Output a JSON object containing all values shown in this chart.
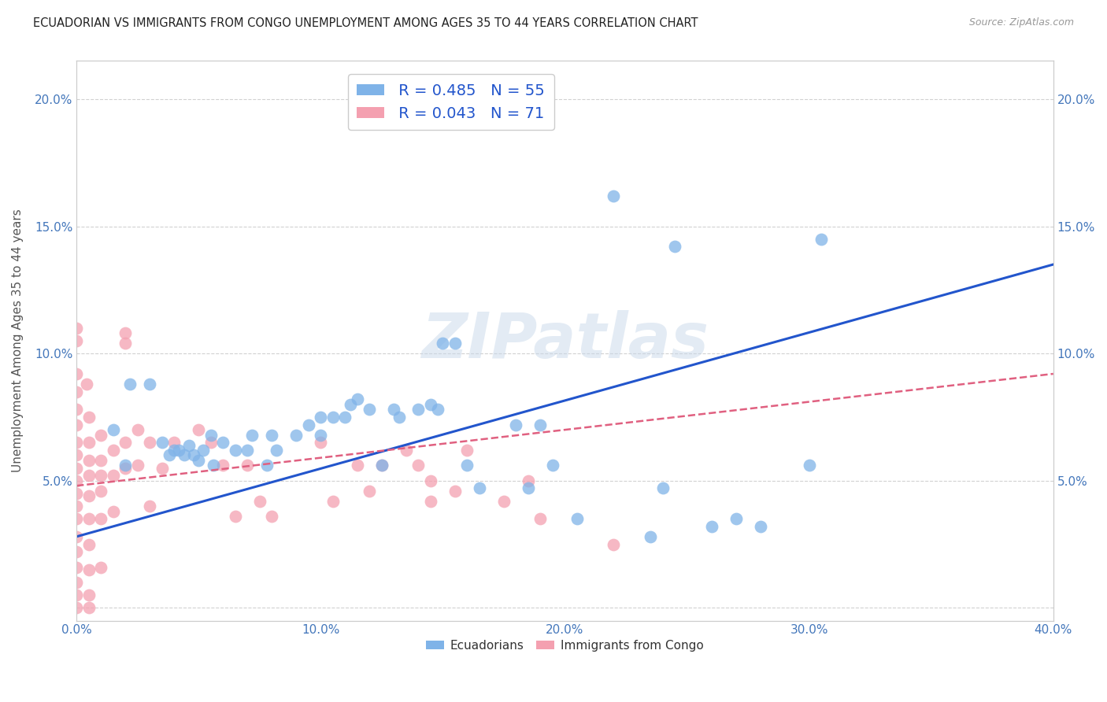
{
  "title": "ECUADORIAN VS IMMIGRANTS FROM CONGO UNEMPLOYMENT AMONG AGES 35 TO 44 YEARS CORRELATION CHART",
  "source": "Source: ZipAtlas.com",
  "ylabel": "Unemployment Among Ages 35 to 44 years",
  "xlim": [
    0.0,
    0.4
  ],
  "ylim": [
    -0.005,
    0.215
  ],
  "xticks": [
    0.0,
    0.1,
    0.2,
    0.3,
    0.4
  ],
  "yticks": [
    0.0,
    0.05,
    0.1,
    0.15,
    0.2
  ],
  "xticklabels": [
    "0.0%",
    "10.0%",
    "20.0%",
    "30.0%",
    "40.0%"
  ],
  "yticklabels": [
    "",
    "5.0%",
    "10.0%",
    "15.0%",
    "20.0%"
  ],
  "background_color": "#ffffff",
  "grid_color": "#cccccc",
  "watermark": "ZIPatlas",
  "legend_r1": "R = 0.485",
  "legend_n1": "N = 55",
  "legend_r2": "R = 0.043",
  "legend_n2": "N = 71",
  "blue_color": "#7fb3e8",
  "pink_color": "#f4a0b0",
  "blue_line_color": "#2255cc",
  "pink_line_color": "#e06080",
  "title_color": "#222222",
  "axis_label_color": "#555555",
  "tick_color": "#4477bb",
  "blue_scatter": [
    [
      0.015,
      0.07
    ],
    [
      0.02,
      0.056
    ],
    [
      0.022,
      0.088
    ],
    [
      0.03,
      0.088
    ],
    [
      0.035,
      0.065
    ],
    [
      0.038,
      0.06
    ],
    [
      0.04,
      0.062
    ],
    [
      0.042,
      0.062
    ],
    [
      0.044,
      0.06
    ],
    [
      0.046,
      0.064
    ],
    [
      0.048,
      0.06
    ],
    [
      0.05,
      0.058
    ],
    [
      0.052,
      0.062
    ],
    [
      0.055,
      0.068
    ],
    [
      0.056,
      0.056
    ],
    [
      0.06,
      0.065
    ],
    [
      0.065,
      0.062
    ],
    [
      0.07,
      0.062
    ],
    [
      0.072,
      0.068
    ],
    [
      0.078,
      0.056
    ],
    [
      0.08,
      0.068
    ],
    [
      0.082,
      0.062
    ],
    [
      0.09,
      0.068
    ],
    [
      0.095,
      0.072
    ],
    [
      0.1,
      0.075
    ],
    [
      0.1,
      0.068
    ],
    [
      0.105,
      0.075
    ],
    [
      0.11,
      0.075
    ],
    [
      0.112,
      0.08
    ],
    [
      0.115,
      0.082
    ],
    [
      0.12,
      0.078
    ],
    [
      0.125,
      0.056
    ],
    [
      0.13,
      0.078
    ],
    [
      0.132,
      0.075
    ],
    [
      0.14,
      0.078
    ],
    [
      0.145,
      0.08
    ],
    [
      0.148,
      0.078
    ],
    [
      0.15,
      0.104
    ],
    [
      0.155,
      0.104
    ],
    [
      0.16,
      0.056
    ],
    [
      0.165,
      0.047
    ],
    [
      0.18,
      0.072
    ],
    [
      0.185,
      0.047
    ],
    [
      0.19,
      0.072
    ],
    [
      0.195,
      0.056
    ],
    [
      0.205,
      0.035
    ],
    [
      0.22,
      0.162
    ],
    [
      0.235,
      0.028
    ],
    [
      0.24,
      0.047
    ],
    [
      0.245,
      0.142
    ],
    [
      0.26,
      0.032
    ],
    [
      0.27,
      0.035
    ],
    [
      0.28,
      0.032
    ],
    [
      0.3,
      0.056
    ],
    [
      0.305,
      0.145
    ]
  ],
  "pink_scatter": [
    [
      0.0,
      0.11
    ],
    [
      0.0,
      0.105
    ],
    [
      0.0,
      0.092
    ],
    [
      0.0,
      0.085
    ],
    [
      0.0,
      0.078
    ],
    [
      0.0,
      0.072
    ],
    [
      0.0,
      0.065
    ],
    [
      0.0,
      0.06
    ],
    [
      0.0,
      0.055
    ],
    [
      0.0,
      0.05
    ],
    [
      0.0,
      0.045
    ],
    [
      0.0,
      0.04
    ],
    [
      0.0,
      0.035
    ],
    [
      0.0,
      0.028
    ],
    [
      0.0,
      0.022
    ],
    [
      0.0,
      0.016
    ],
    [
      0.0,
      0.01
    ],
    [
      0.0,
      0.005
    ],
    [
      0.0,
      0.0
    ],
    [
      0.004,
      0.088
    ],
    [
      0.005,
      0.075
    ],
    [
      0.005,
      0.065
    ],
    [
      0.005,
      0.058
    ],
    [
      0.005,
      0.052
    ],
    [
      0.005,
      0.044
    ],
    [
      0.005,
      0.035
    ],
    [
      0.005,
      0.025
    ],
    [
      0.005,
      0.015
    ],
    [
      0.005,
      0.005
    ],
    [
      0.005,
      0.0
    ],
    [
      0.01,
      0.068
    ],
    [
      0.01,
      0.058
    ],
    [
      0.01,
      0.052
    ],
    [
      0.01,
      0.046
    ],
    [
      0.01,
      0.035
    ],
    [
      0.01,
      0.016
    ],
    [
      0.015,
      0.062
    ],
    [
      0.015,
      0.052
    ],
    [
      0.015,
      0.038
    ],
    [
      0.02,
      0.108
    ],
    [
      0.02,
      0.104
    ],
    [
      0.02,
      0.065
    ],
    [
      0.02,
      0.055
    ],
    [
      0.025,
      0.07
    ],
    [
      0.025,
      0.056
    ],
    [
      0.03,
      0.065
    ],
    [
      0.03,
      0.04
    ],
    [
      0.035,
      0.055
    ],
    [
      0.04,
      0.065
    ],
    [
      0.05,
      0.07
    ],
    [
      0.055,
      0.065
    ],
    [
      0.06,
      0.056
    ],
    [
      0.065,
      0.036
    ],
    [
      0.07,
      0.056
    ],
    [
      0.075,
      0.042
    ],
    [
      0.08,
      0.036
    ],
    [
      0.1,
      0.065
    ],
    [
      0.105,
      0.042
    ],
    [
      0.115,
      0.056
    ],
    [
      0.12,
      0.046
    ],
    [
      0.125,
      0.056
    ],
    [
      0.135,
      0.062
    ],
    [
      0.14,
      0.056
    ],
    [
      0.145,
      0.05
    ],
    [
      0.145,
      0.042
    ],
    [
      0.155,
      0.046
    ],
    [
      0.16,
      0.062
    ],
    [
      0.175,
      0.042
    ],
    [
      0.185,
      0.05
    ],
    [
      0.19,
      0.035
    ],
    [
      0.22,
      0.025
    ]
  ],
  "blue_fit_x": [
    0.0,
    0.4
  ],
  "blue_fit_y": [
    0.028,
    0.135
  ],
  "pink_fit_x": [
    0.0,
    0.4
  ],
  "pink_fit_y": [
    0.048,
    0.092
  ]
}
